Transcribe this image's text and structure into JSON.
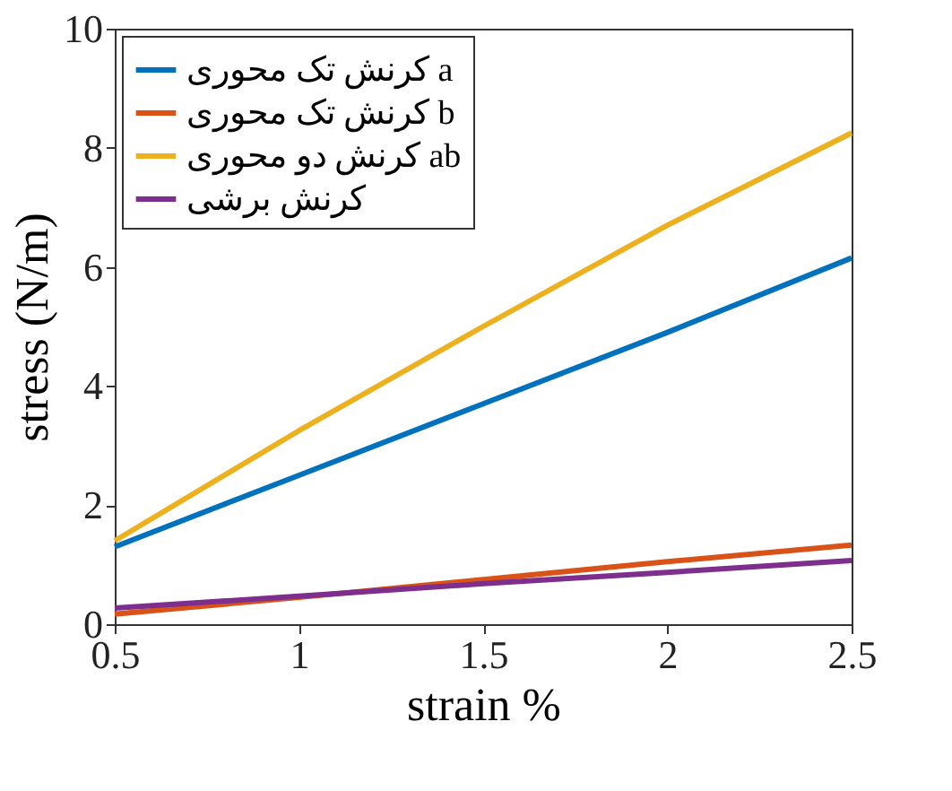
{
  "chart_data": {
    "type": "line",
    "xlabel": "strain %",
    "ylabel": "stress (N/m)",
    "x": [
      0.5,
      1,
      1.5,
      2,
      2.5
    ],
    "series": [
      {
        "name": "کرنش تک محوری a",
        "color": "#0072bd",
        "values": [
          1.3,
          2.5,
          3.7,
          4.9,
          6.15
        ]
      },
      {
        "name": "کرنش تک محوری b",
        "color": "#d95319",
        "values": [
          0.17,
          0.45,
          0.75,
          1.05,
          1.33
        ]
      },
      {
        "name": "کرنش دو محوری ab",
        "color": "#edb120",
        "values": [
          1.4,
          3.25,
          5.0,
          6.7,
          8.25
        ]
      },
      {
        "name": "کرنش برشی",
        "color": "#7e2f8e",
        "values": [
          0.27,
          0.47,
          0.68,
          0.87,
          1.07
        ]
      }
    ],
    "xlim": [
      0.5,
      2.5
    ],
    "xticks": [
      0.5,
      1,
      1.5,
      2,
      2.5
    ],
    "ylim": [
      0,
      10
    ],
    "yticks": [
      0,
      2,
      4,
      6,
      8,
      10
    ],
    "grid": false,
    "legend": "top left",
    "marker": "none",
    "line_style": "solid"
  }
}
